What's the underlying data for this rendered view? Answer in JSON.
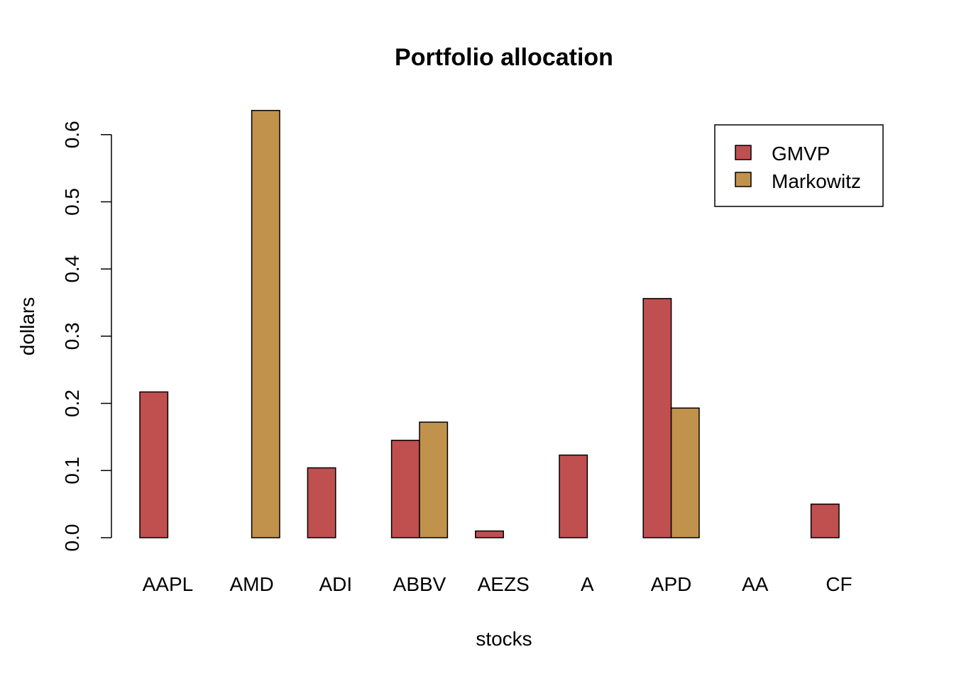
{
  "chart_data": {
    "type": "bar",
    "title": "Portfolio allocation",
    "xlabel": "stocks",
    "ylabel": "dollars",
    "categories": [
      "AAPL",
      "AMD",
      "ADI",
      "ABBV",
      "AEZS",
      "A",
      "APD",
      "AA",
      "CF"
    ],
    "series": [
      {
        "name": "GMVP",
        "color": "#c04f4f",
        "values": [
          0.217,
          0.0,
          0.104,
          0.145,
          0.01,
          0.123,
          0.356,
          0.0,
          0.05
        ]
      },
      {
        "name": "Markowitz",
        "color": "#c0924c",
        "values": [
          0.0,
          0.636,
          0.0,
          0.172,
          0.0,
          0.0,
          0.193,
          0.0,
          0.0
        ]
      }
    ],
    "ylim": [
      0,
      0.6
    ],
    "yticks": [
      "0.0",
      "0.1",
      "0.2",
      "0.3",
      "0.4",
      "0.5",
      "0.6"
    ],
    "grid": false,
    "legend_position": "top-right"
  }
}
